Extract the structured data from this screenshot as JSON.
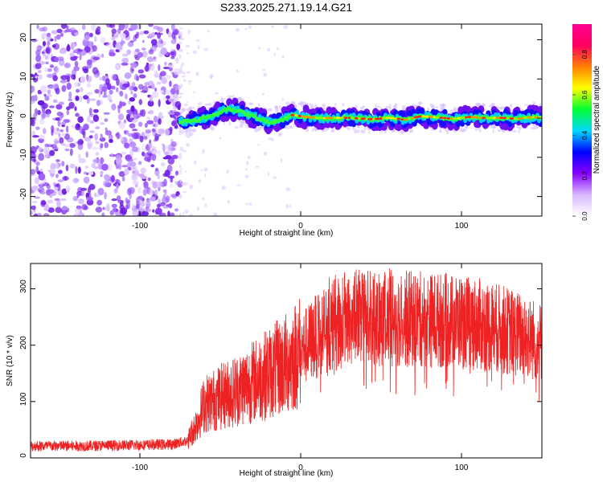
{
  "title": "S233.2025.271.19.14.G21",
  "chart_data": [
    {
      "type": "heatmap",
      "panel": "spectrogram",
      "xlabel": "Height of straight line (km)",
      "ylabel": "Frequency (Hz)",
      "xlim": [
        -168,
        150
      ],
      "ylim": [
        -25,
        24
      ],
      "xticks": [
        -100,
        0,
        100
      ],
      "xtick_labels": [
        "-100",
        "0",
        "100"
      ],
      "yticks": [
        -20,
        -10,
        0,
        10,
        20
      ],
      "ytick_labels": [
        "-20",
        "-10",
        "0",
        "10",
        "20"
      ],
      "colorbar": {
        "label": "Normalized spectral amplitude",
        "range": [
          0,
          0.95
        ],
        "ticks": [
          0.0,
          0.2,
          0.4,
          0.6,
          0.8
        ],
        "tick_labels": [
          "0.0",
          "0.2",
          "0.4",
          "0.6",
          "0.8"
        ],
        "colors": [
          "#ffffff",
          "#d8b8ff",
          "#8800ff",
          "#0000ff",
          "#00d8ff",
          "#00ff30",
          "#ffff00",
          "#ff8000",
          "#ff0060",
          "#ff0090"
        ]
      },
      "noise_region_x": [
        -168,
        -75
      ],
      "ridge": {
        "x": [
          -75,
          -65,
          -55,
          -45,
          -40,
          -30,
          -20,
          -12,
          -5,
          5,
          15,
          30,
          45,
          55,
          65,
          75,
          85,
          95,
          105,
          115,
          125,
          135,
          145,
          150
        ],
        "freq": [
          -1.0,
          -0.5,
          0.5,
          2.5,
          2.0,
          0.5,
          -1.0,
          -0.5,
          0.8,
          0.2,
          0.0,
          0.1,
          -0.3,
          0.1,
          -0.4,
          0.5,
          0.2,
          -0.2,
          0.3,
          0.0,
          0.1,
          -0.2,
          0.3,
          0.0
        ]
      }
    },
    {
      "type": "line",
      "panel": "snr",
      "xlabel": "Height of straight line (km)",
      "ylabel": "SNR (10 * v/v)",
      "xlim": [
        -168,
        150
      ],
      "ylim": [
        0,
        345
      ],
      "xticks": [
        -100,
        0,
        100
      ],
      "xtick_labels": [
        "-100",
        "0",
        "100"
      ],
      "yticks": [
        0,
        100,
        200,
        300
      ],
      "ytick_labels": [
        "0",
        "100",
        "200",
        "300"
      ],
      "color": "#ee2222",
      "envelope": {
        "x": [
          -168,
          -140,
          -100,
          -80,
          -70,
          -65,
          -60,
          -50,
          -40,
          -30,
          -20,
          -10,
          0,
          10,
          20,
          30,
          40,
          60,
          80,
          100,
          120,
          135,
          150
        ],
        "y": [
          22,
          22,
          24,
          25,
          32,
          60,
          95,
          108,
          120,
          135,
          150,
          165,
          190,
          218,
          235,
          248,
          252,
          248,
          245,
          242,
          232,
          220,
          205
        ]
      }
    }
  ]
}
